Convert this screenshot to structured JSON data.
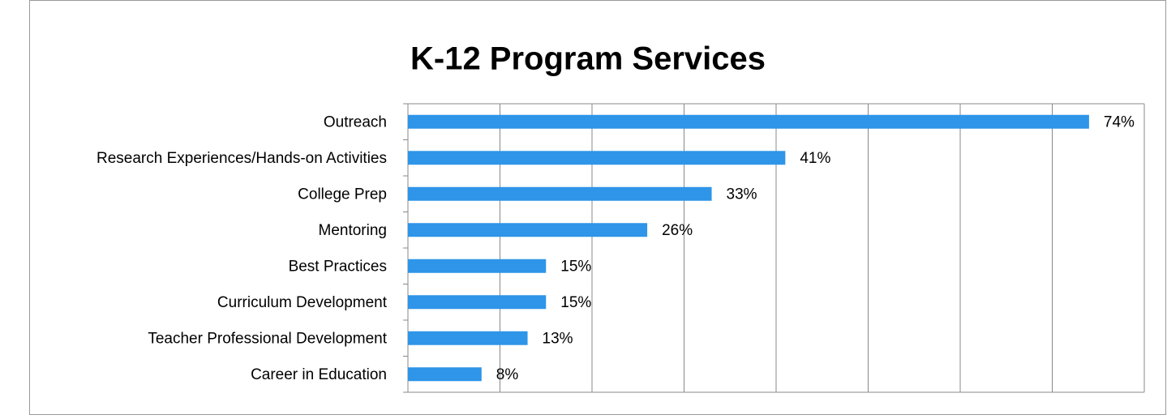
{
  "chart_data": {
    "type": "bar",
    "orientation": "horizontal",
    "title": "K-12 Program Services",
    "categories": [
      "Outreach",
      "Research Experiences/Hands-on Activities",
      "College Prep",
      "Mentoring",
      "Best Practices",
      "Curriculum Development",
      "Teacher Professional Development",
      "Career in Education"
    ],
    "values": [
      74,
      41,
      33,
      26,
      15,
      15,
      13,
      8
    ],
    "value_labels": [
      "74%",
      "41%",
      "33%",
      "26%",
      "15%",
      "15%",
      "13%",
      "8%"
    ],
    "color": "#2e95e8",
    "xlim": [
      0,
      80
    ],
    "xticks": [
      0,
      10,
      20,
      30,
      40,
      50,
      60,
      70,
      80
    ],
    "grid": true
  }
}
